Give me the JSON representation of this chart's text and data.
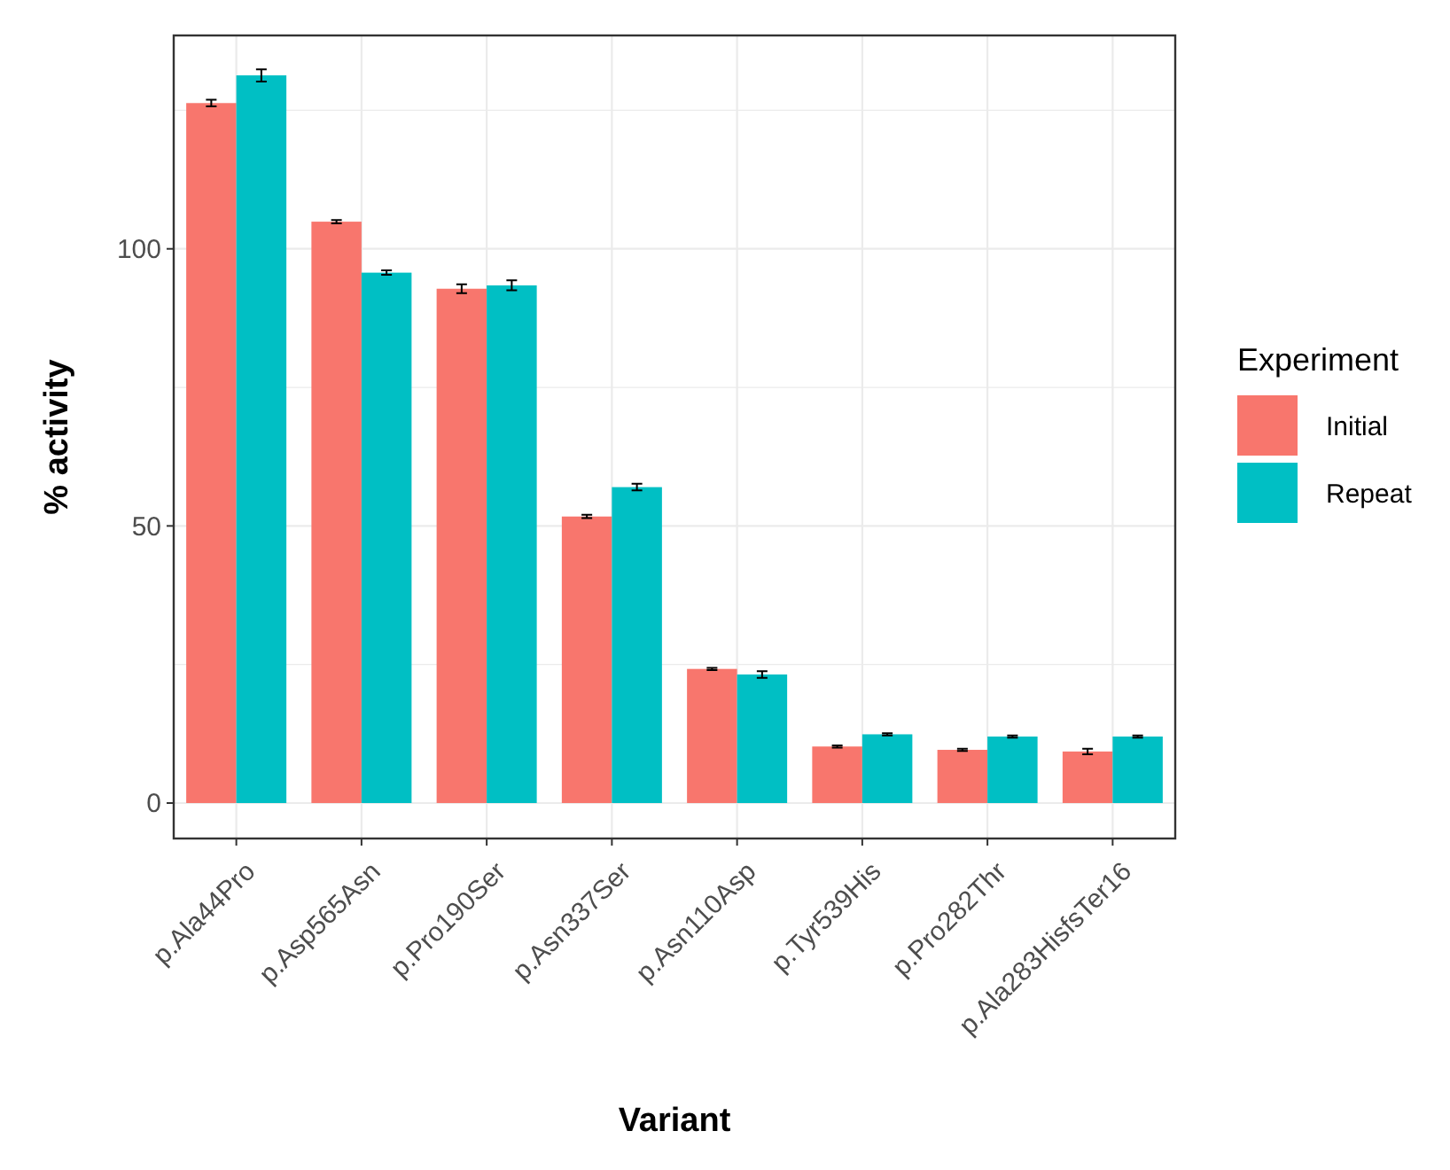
{
  "chart_data": {
    "type": "bar",
    "xlabel": "Variant",
    "ylabel": "% activity",
    "legend_title": "Experiment",
    "legend": "right",
    "grid": true,
    "categories": [
      "p.Ala44Pro",
      "p.Asp565Asn",
      "p.Pro190Ser",
      "p.Asn337Ser",
      "p.Asn110Asp",
      "p.Tyr539His",
      "p.Pro282Thr",
      "p.Ala283HisfsTer16"
    ],
    "ylim": [
      -6.4,
      138.5
    ],
    "yticks": [
      0,
      {
        "value": 25,
        "label": null
      },
      50,
      {
        "value": 75,
        "label": null
      },
      100,
      {
        "value": 125,
        "label": null
      }
    ],
    "series": [
      {
        "name": "Initial",
        "color": "#f8766d",
        "values": [
          126.3,
          104.9,
          92.8,
          51.7,
          24.2,
          10.2,
          9.6,
          9.3
        ],
        "errors": [
          0.6,
          0.3,
          0.8,
          0.3,
          0.2,
          0.2,
          0.2,
          0.5
        ]
      },
      {
        "name": "Repeat",
        "color": "#00bfc4",
        "values": [
          131.3,
          95.7,
          93.4,
          57.0,
          23.2,
          12.4,
          12.0,
          12.0
        ],
        "errors": [
          1.1,
          0.4,
          0.9,
          0.6,
          0.6,
          0.2,
          0.2,
          0.2
        ]
      }
    ]
  }
}
